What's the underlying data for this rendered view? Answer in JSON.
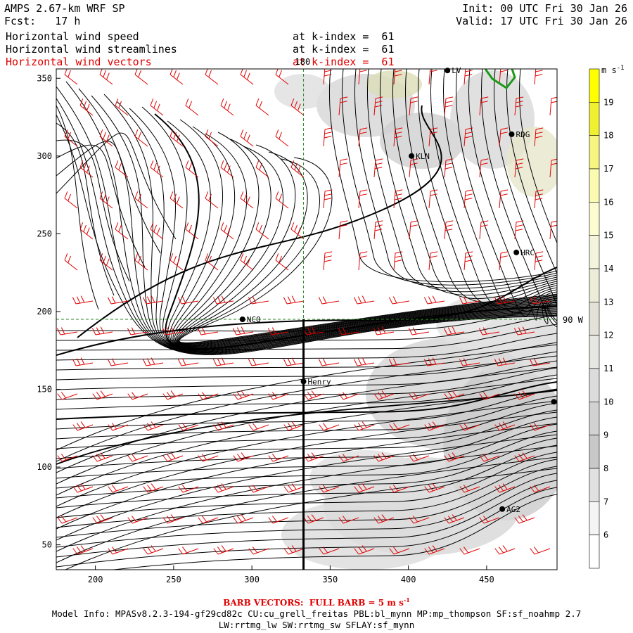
{
  "header": {
    "model_title": "AMPS 2.67-km WRF SP",
    "forecast_label": "Fcst:",
    "forecast_hours": "17 h",
    "init_time": "Init: 00 UTC Fri 30 Jan 26",
    "valid_time": "Valid: 17 UTC Fri 30 Jan 26"
  },
  "fields": [
    {
      "name": "Horizontal wind speed",
      "level": "at k-index =  61",
      "color": "#000000"
    },
    {
      "name": "Horizontal wind streamlines",
      "level": "at k-index =  61",
      "color": "#000000"
    },
    {
      "name": "Horizontal wind vectors",
      "level": "at k-index =  61",
      "color": "#e00000"
    }
  ],
  "axes": {
    "x_ticks": [
      "200",
      "250",
      "300",
      "350",
      "400",
      "450"
    ],
    "y_ticks": [
      "50",
      "100",
      "150",
      "200",
      "250",
      "300",
      "350"
    ],
    "x_range": [
      175,
      495
    ],
    "y_range": [
      34,
      356
    ]
  },
  "graticule": {
    "meridian_label": "180",
    "parallel_label": "90 W",
    "meridian_x": 333,
    "parallel_y": 195,
    "color": "#2a8a2a"
  },
  "stations": [
    {
      "code": "LV",
      "x": 425,
      "y": 355
    },
    {
      "code": "RDG",
      "x": 466,
      "y": 314
    },
    {
      "code": "KLN",
      "x": 402,
      "y": 300
    },
    {
      "code": "HRC",
      "x": 469,
      "y": 238
    },
    {
      "code": "NCQ",
      "x": 294,
      "y": 195
    },
    {
      "code": "Henry",
      "x": 333,
      "y": 155
    },
    {
      "code": "AG2",
      "x": 460,
      "y": 73
    },
    {
      "code": "",
      "x": 493,
      "y": 142
    }
  ],
  "colorbar": {
    "units_label": "m s",
    "units_exp": "-1",
    "levels": [
      "19",
      "18",
      "17",
      "16",
      "15",
      "14",
      "13",
      "12",
      "11",
      "10",
      "9",
      "8",
      "7",
      "6"
    ],
    "colors": [
      "#ffff00",
      "#f0f030",
      "#f5f580",
      "#fafab0",
      "#fcfcd0",
      "#f4f4dc",
      "#ececd8",
      "#e2e2d8",
      "#e6e6e2",
      "#dcdcdc",
      "#d2d2d2",
      "#c8c8c8",
      "#e0e0e0",
      "#f4f4f4",
      "#ffffff"
    ]
  },
  "footer": {
    "barb_note": "BARB VECTORS:  FULL BARB = 5 m s",
    "barb_exp": "-1",
    "model_info": "Model Info: MPASv8.2.3-194-gf29cd82c CU:cu_grell_freitas PBL:bl_mynn MP:mp_thompson SF:sf_noahmp 2.7",
    "physics": "LW:rrtmg_lw SW:rrtmg_sw SFLAY:sf_mynn"
  },
  "colors": {
    "streamline": "#000000",
    "barb": "#e00000",
    "coast": "#1a9a1a",
    "terrain": "#cfcfcf"
  }
}
